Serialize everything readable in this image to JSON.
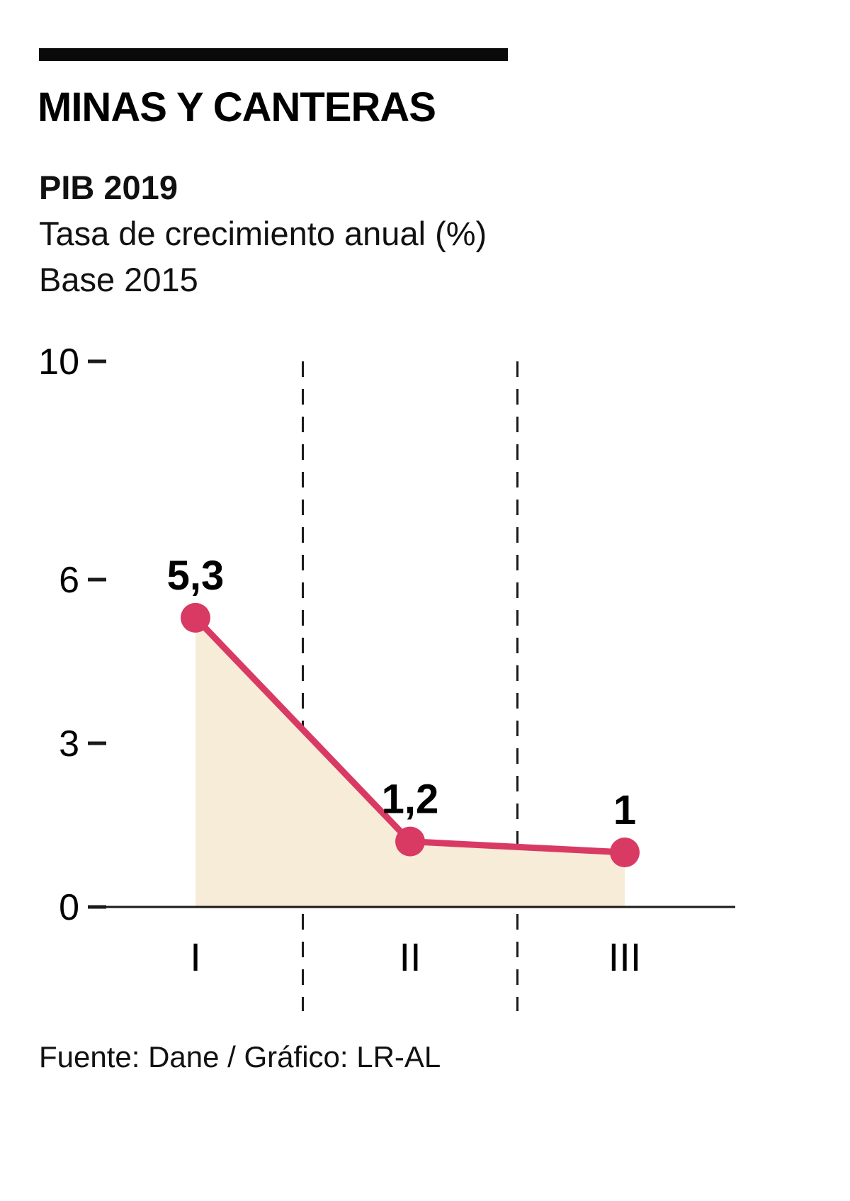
{
  "header": {
    "title": "MINAS Y CANTERAS",
    "subtitle_line1": "PIB 2019",
    "subtitle_line2": "Tasa de crecimiento anual (%)",
    "subtitle_line3": "Base 2015"
  },
  "footer": {
    "source": "Fuente: Dane / Gráfico: LR-AL"
  },
  "colors": {
    "line": "#d93a63",
    "point": "#d93a63",
    "area_fill": "#f7ecd8",
    "axis": "#1a1a1a",
    "dashed_line": "#1a1a1a",
    "text": "#000000"
  },
  "chart_data": {
    "type": "area",
    "categories": [
      "I",
      "II",
      "III"
    ],
    "values": [
      5.3,
      1.2,
      1
    ],
    "value_labels": [
      "5,3",
      "1,2",
      "1"
    ],
    "title": "PIB 2019 — Minas y Canteras",
    "xlabel": "",
    "ylabel": "Tasa de crecimiento anual (%)",
    "ylim": [
      0,
      10
    ],
    "yticks": [
      0,
      3,
      6,
      10
    ],
    "grid": "dashed-vertical-separators",
    "legend": "none"
  }
}
